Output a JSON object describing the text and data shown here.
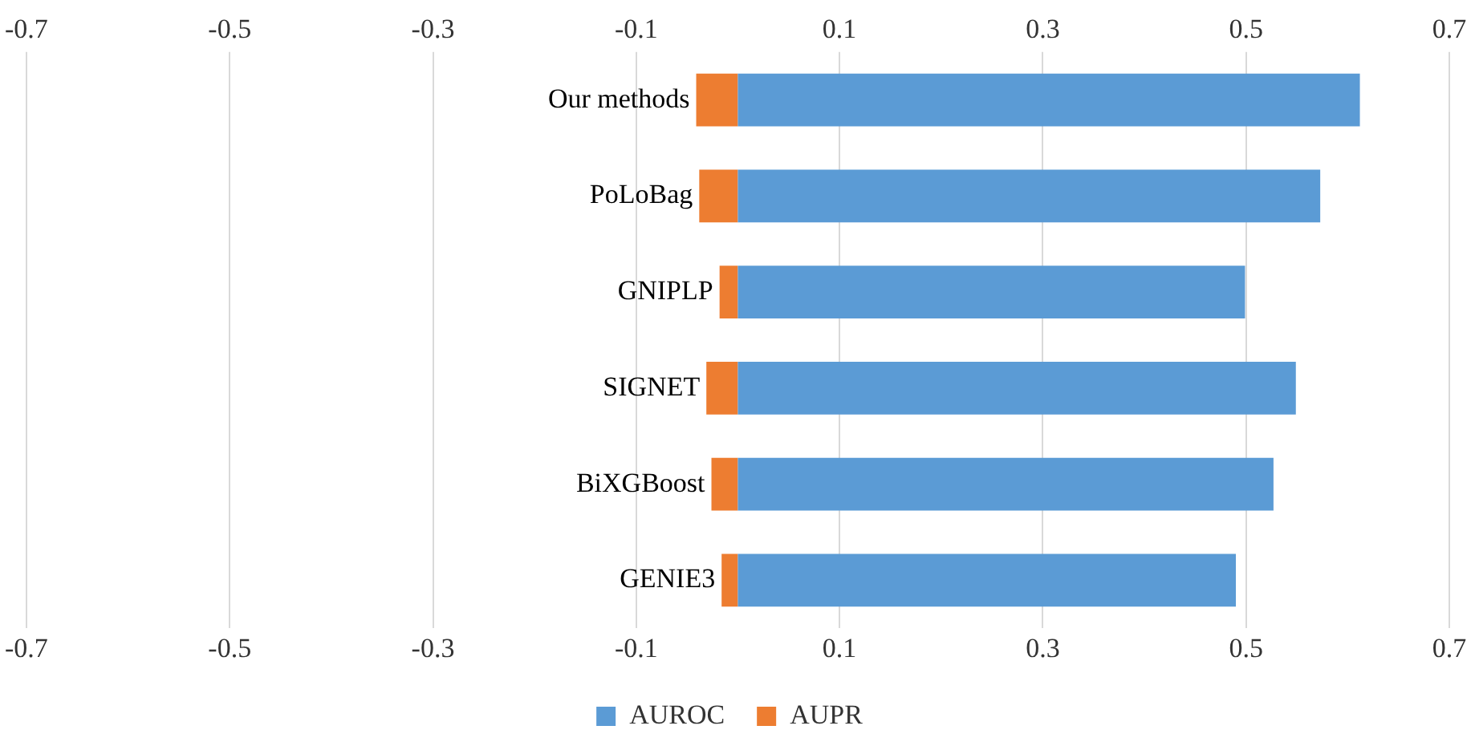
{
  "chart_data": {
    "type": "bar",
    "orientation": "horizontal",
    "stacked": true,
    "categories": [
      "Our methods",
      "PoLoBag",
      "GNIPLP",
      "SIGNET",
      "BiXGBoost",
      "GENIE3"
    ],
    "series": [
      {
        "name": "AUROC",
        "color": "#5b9bd5",
        "values": [
          0.612,
          0.573,
          0.499,
          0.549,
          0.527,
          0.49
        ]
      },
      {
        "name": "AUPR",
        "color": "#ed7d31",
        "values": [
          -0.041,
          -0.038,
          -0.018,
          -0.031,
          -0.026,
          -0.016
        ]
      }
    ],
    "xlim": [
      -0.7,
      0.7
    ],
    "xticks": [
      -0.7,
      -0.5,
      -0.3,
      -0.1,
      0.1,
      0.3,
      0.5,
      0.7
    ],
    "x2lim": [
      -0.7,
      0.7
    ],
    "x2ticks": [
      -0.7,
      -0.5,
      -0.3,
      -0.1,
      0.1,
      0.3,
      0.5,
      0.7
    ],
    "grid": "x",
    "legend": "bottom"
  }
}
